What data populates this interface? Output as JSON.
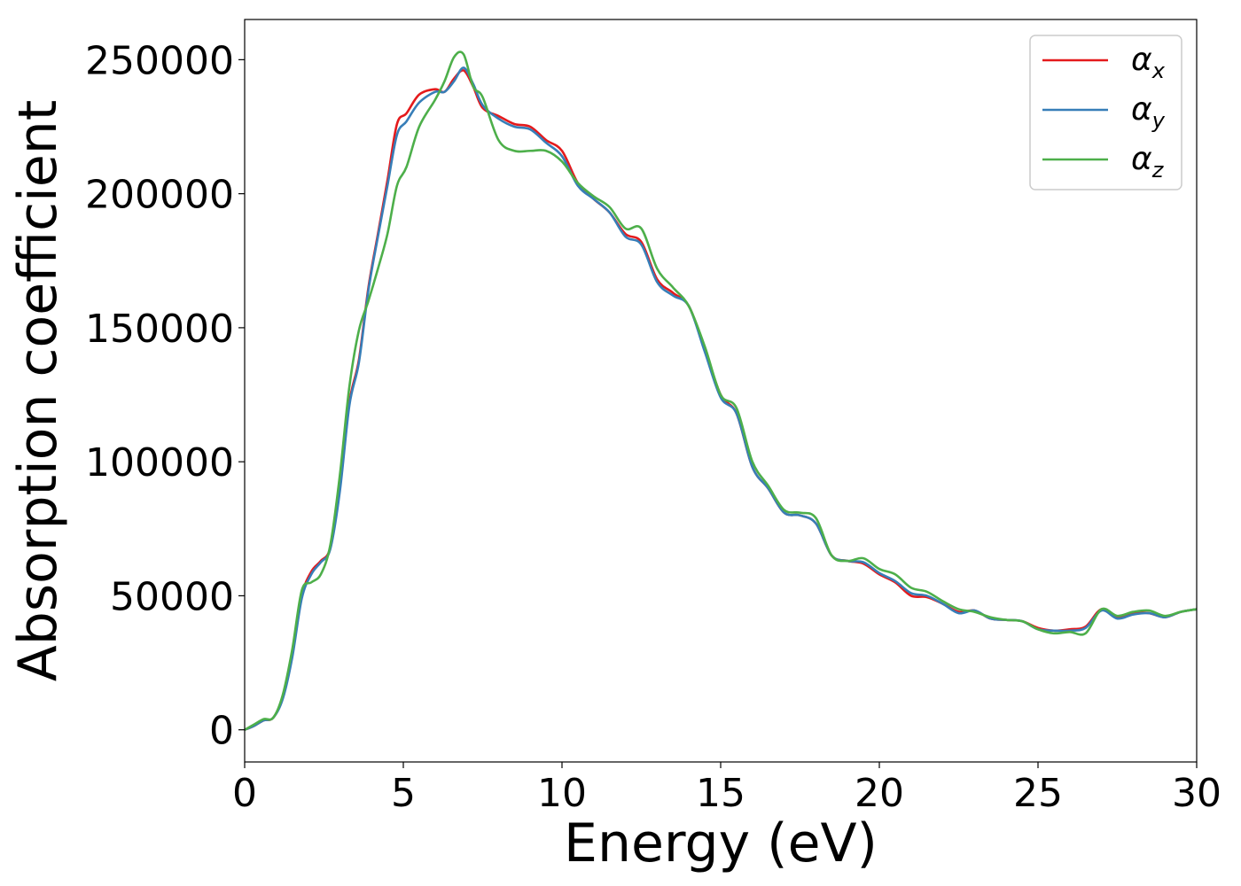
{
  "chart_data": {
    "type": "line",
    "xlabel": "Energy (eV)",
    "ylabel": "Absorption coefficient",
    "xlim": [
      0,
      30
    ],
    "ylim": [
      -12000,
      265000
    ],
    "xticks": [
      0,
      5,
      10,
      15,
      20,
      25,
      30
    ],
    "yticks": [
      0,
      50000,
      100000,
      150000,
      200000,
      250000
    ],
    "xtick_labels": [
      "0",
      "5",
      "10",
      "15",
      "20",
      "25",
      "30"
    ],
    "ytick_labels": [
      "0",
      "50000",
      "100000",
      "150000",
      "200000",
      "250000"
    ],
    "grid": false,
    "legend_position": "top-right",
    "series": [
      {
        "name": "α_x",
        "symbol": "α",
        "subscript": "x",
        "color": "#e41a1c",
        "x": [
          0,
          0.3,
          0.6,
          0.9,
          1.2,
          1.5,
          1.8,
          2.1,
          2.4,
          2.7,
          3.0,
          3.3,
          3.6,
          3.9,
          4.2,
          4.5,
          4.8,
          5.1,
          5.5,
          6.0,
          6.3,
          6.6,
          6.9,
          7.2,
          7.5,
          8.0,
          8.5,
          9.0,
          9.5,
          10.0,
          10.5,
          11.0,
          11.5,
          12.0,
          12.5,
          13.0,
          13.5,
          14.0,
          14.5,
          15.0,
          15.5,
          16.0,
          16.5,
          17.0,
          17.5,
          18.0,
          18.5,
          19.0,
          19.5,
          20.0,
          20.5,
          21.0,
          21.5,
          22.0,
          22.5,
          23.0,
          23.5,
          24.0,
          24.5,
          25.0,
          25.5,
          26.0,
          26.5,
          27.0,
          27.5,
          28.0,
          28.5,
          29.0,
          29.5,
          30.0
        ],
        "y": [
          0,
          1500,
          3500,
          4500,
          12000,
          28000,
          50000,
          59000,
          63000,
          68000,
          90000,
          122000,
          138000,
          165000,
          185000,
          205000,
          226000,
          230000,
          237000,
          239000,
          238000,
          243000,
          246000,
          240000,
          232000,
          229000,
          226000,
          225000,
          220000,
          216000,
          204000,
          198000,
          193000,
          185000,
          182000,
          168000,
          163000,
          158000,
          142000,
          125000,
          118000,
          98000,
          90000,
          81000,
          80000,
          77000,
          65000,
          63000,
          62000,
          58000,
          55000,
          50000,
          49500,
          47000,
          44000,
          44500,
          41500,
          41000,
          40500,
          38000,
          37000,
          37500,
          38500,
          45000,
          42000,
          43500,
          43500,
          42000,
          44000,
          45000
        ]
      },
      {
        "name": "α_y",
        "symbol": "α",
        "subscript": "y",
        "color": "#377eb8",
        "x": [
          0,
          0.3,
          0.6,
          0.9,
          1.2,
          1.5,
          1.8,
          2.1,
          2.4,
          2.7,
          3.0,
          3.3,
          3.6,
          3.9,
          4.2,
          4.5,
          4.8,
          5.1,
          5.5,
          6.0,
          6.3,
          6.6,
          6.9,
          7.2,
          7.5,
          8.0,
          8.5,
          9.0,
          9.5,
          10.0,
          10.5,
          11.0,
          11.5,
          12.0,
          12.5,
          13.0,
          13.5,
          14.0,
          14.5,
          15.0,
          15.5,
          16.0,
          16.5,
          17.0,
          17.5,
          18.0,
          18.5,
          19.0,
          19.5,
          20.0,
          20.5,
          21.0,
          21.5,
          22.0,
          22.5,
          23.0,
          23.5,
          24.0,
          24.5,
          25.0,
          25.5,
          26.0,
          26.5,
          27.0,
          27.5,
          28.0,
          28.5,
          29.0,
          29.5,
          30.0
        ],
        "y": [
          0,
          1500,
          3500,
          4500,
          11500,
          27000,
          49000,
          58000,
          62500,
          67500,
          89000,
          121000,
          137000,
          164000,
          184000,
          203000,
          222000,
          227000,
          234000,
          238000,
          238000,
          242000,
          247000,
          241000,
          233000,
          228000,
          225000,
          224000,
          219000,
          214000,
          203000,
          198000,
          193000,
          184000,
          181000,
          167000,
          162000,
          158000,
          141000,
          124000,
          118000,
          98000,
          90000,
          81000,
          80000,
          77000,
          65000,
          63000,
          62500,
          58500,
          55500,
          51000,
          50000,
          47000,
          43500,
          44500,
          41500,
          41000,
          40500,
          37500,
          37000,
          37000,
          38000,
          44500,
          41500,
          43000,
          43500,
          42000,
          44000,
          45000
        ]
      },
      {
        "name": "α_z",
        "symbol": "α",
        "subscript": "z",
        "color": "#4daf4a",
        "x": [
          0,
          0.3,
          0.6,
          0.9,
          1.2,
          1.5,
          1.8,
          2.1,
          2.4,
          2.7,
          3.0,
          3.3,
          3.6,
          3.9,
          4.2,
          4.5,
          4.8,
          5.1,
          5.5,
          6.0,
          6.3,
          6.6,
          6.9,
          7.2,
          7.5,
          8.0,
          8.5,
          9.0,
          9.5,
          10.0,
          10.5,
          11.0,
          11.5,
          12.0,
          12.5,
          13.0,
          13.5,
          14.0,
          14.5,
          15.0,
          15.5,
          16.0,
          16.5,
          17.0,
          17.5,
          18.0,
          18.5,
          19.0,
          19.5,
          20.0,
          20.5,
          21.0,
          21.5,
          22.0,
          22.5,
          23.0,
          23.5,
          24.0,
          24.5,
          25.0,
          25.5,
          26.0,
          26.5,
          27.0,
          27.5,
          28.0,
          28.5,
          29.0,
          29.5,
          30.0
        ],
        "y": [
          0,
          2000,
          4000,
          4500,
          13000,
          30000,
          52000,
          55000,
          58000,
          69000,
          95000,
          128000,
          149000,
          160000,
          172000,
          185000,
          203000,
          210000,
          225000,
          235000,
          242000,
          251000,
          252000,
          240000,
          236000,
          220000,
          216000,
          216000,
          216000,
          212000,
          204000,
          199000,
          195000,
          187000,
          187000,
          172000,
          165000,
          158000,
          143000,
          125000,
          120000,
          100000,
          91000,
          82000,
          81000,
          79000,
          65000,
          63000,
          64000,
          60000,
          58000,
          53000,
          51500,
          48000,
          45000,
          44000,
          42000,
          41000,
          40500,
          37500,
          36000,
          36500,
          36000,
          45000,
          42500,
          44000,
          44500,
          42500,
          44000,
          45000
        ]
      }
    ]
  }
}
